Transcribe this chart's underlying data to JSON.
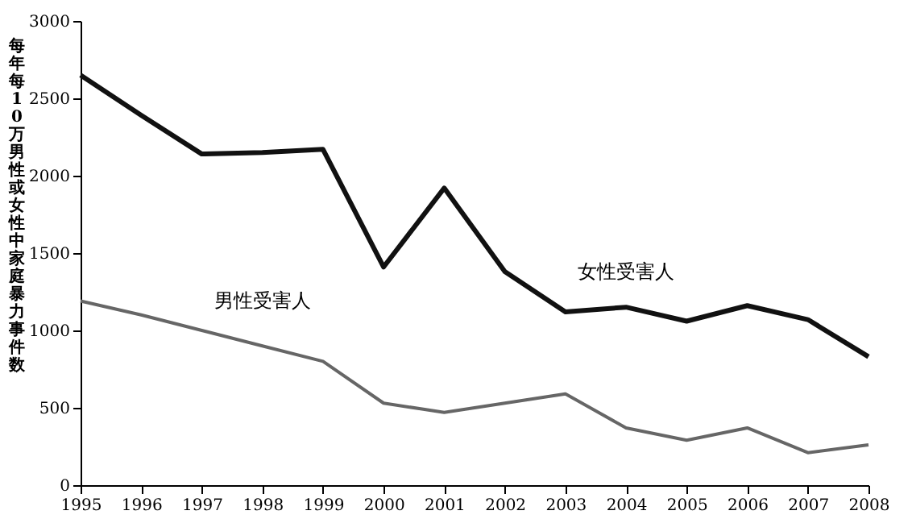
{
  "chart_data": {
    "type": "line",
    "ylabel": "每年每10万男性或女性中家庭暴力事件数",
    "x": [
      1995,
      1996,
      1997,
      1998,
      1999,
      2000,
      2001,
      2002,
      2003,
      2004,
      2005,
      2006,
      2007,
      2008
    ],
    "series": [
      {
        "name": "女性受害人",
        "color": "#111111",
        "values": [
          2650,
          2390,
          2140,
          2150,
          2170,
          1410,
          1920,
          1380,
          1120,
          1150,
          1060,
          1160,
          1070,
          830
        ]
      },
      {
        "name": "男性受害人",
        "color": "#666666",
        "values": [
          1190,
          1100,
          1000,
          900,
          800,
          530,
          470,
          530,
          590,
          370,
          290,
          370,
          210,
          260
        ]
      }
    ],
    "xlim": [
      1995,
      2008
    ],
    "xticks": [
      1995,
      1996,
      1997,
      1998,
      1999,
      2000,
      2001,
      2002,
      2003,
      2004,
      2005,
      2006,
      2007,
      2008
    ],
    "ylim": [
      0,
      3000
    ],
    "yticks": [
      0,
      500,
      1000,
      1500,
      2000,
      2500,
      3000
    ],
    "grid": false,
    "marker": "none",
    "line_style": "solid"
  }
}
